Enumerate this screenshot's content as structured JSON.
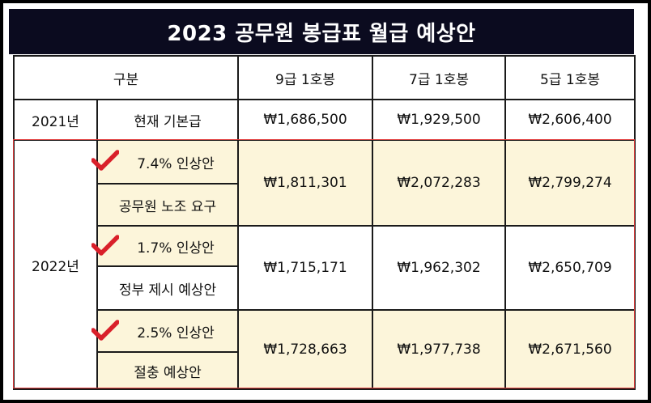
{
  "title": "2023 공무원 봉급표 월급 예상안",
  "header": {
    "category": "구분",
    "columns": [
      "9급 1호봉",
      "7급 1호봉",
      "5급 1호봉"
    ]
  },
  "row2021": {
    "year": "2021년",
    "label": "현재 기본급",
    "values": [
      "₩1,686,500",
      "₩1,929,500",
      "₩2,606,400"
    ]
  },
  "year2022": "2022년",
  "proposals": [
    {
      "rate": "7.4% 인상안",
      "source": "공무원 노조 요구",
      "values": [
        "₩1,811,301",
        "₩2,072,283",
        "₩2,799,274"
      ]
    },
    {
      "rate": "1.7% 인상안",
      "source": "정부 제시 예상안",
      "values": [
        "₩1,715,171",
        "₩1,962,302",
        "₩2,650,709"
      ]
    },
    {
      "rate": "2.5% 인상안",
      "source": "절충 예상안",
      "values": [
        "₩1,728,663",
        "₩1,977,738",
        "₩2,671,560"
      ]
    }
  ],
  "colors": {
    "title_bg": "#0b0b1f",
    "highlight_bg": "#fcf5da",
    "checkmark": "#d9202a",
    "outline": "#e03a3a"
  },
  "icons": {
    "checkmark": "checkmark-icon"
  }
}
